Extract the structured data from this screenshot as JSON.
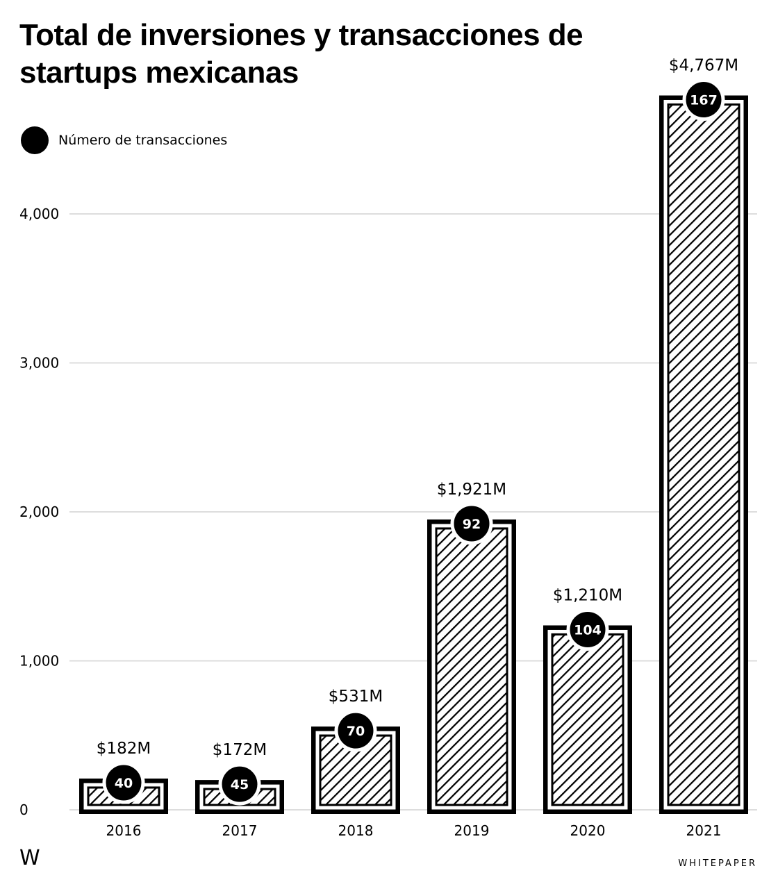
{
  "chart_data": {
    "type": "bar",
    "title": "Total de inversiones y transacciones de startups mexicanas",
    "categories": [
      "2016",
      "2017",
      "2018",
      "2019",
      "2020",
      "2021"
    ],
    "series": [
      {
        "name": "",
        "values": [
          182,
          172,
          531,
          1921,
          1210,
          4767
        ]
      },
      {
        "name": "Número de transacciones",
        "values": [
          40,
          45,
          70,
          92,
          104,
          167
        ]
      }
    ],
    "value_labels": [
      "$182M",
      "$172M",
      "$531M",
      "$1,921M",
      "$1,210M",
      "$4,767M"
    ],
    "y_ticks": [
      0,
      1000,
      2000,
      3000,
      4000
    ],
    "y_tick_labels": [
      "0",
      "1,000",
      "2,000",
      "3,000",
      "4,000"
    ],
    "xlabel": "",
    "ylabel": "",
    "ylim": [
      0,
      4767
    ],
    "grid": true,
    "legend": {
      "position": "top-left",
      "label": "Número de transacciones"
    },
    "colors": {
      "bar_outline": "#000000",
      "hatch": "#000000",
      "grid": "#dddddd",
      "marker": "#000000",
      "marker_text": "#ffffff"
    }
  },
  "footer": {
    "logo": "W",
    "brand": "WHITEPAPER"
  }
}
